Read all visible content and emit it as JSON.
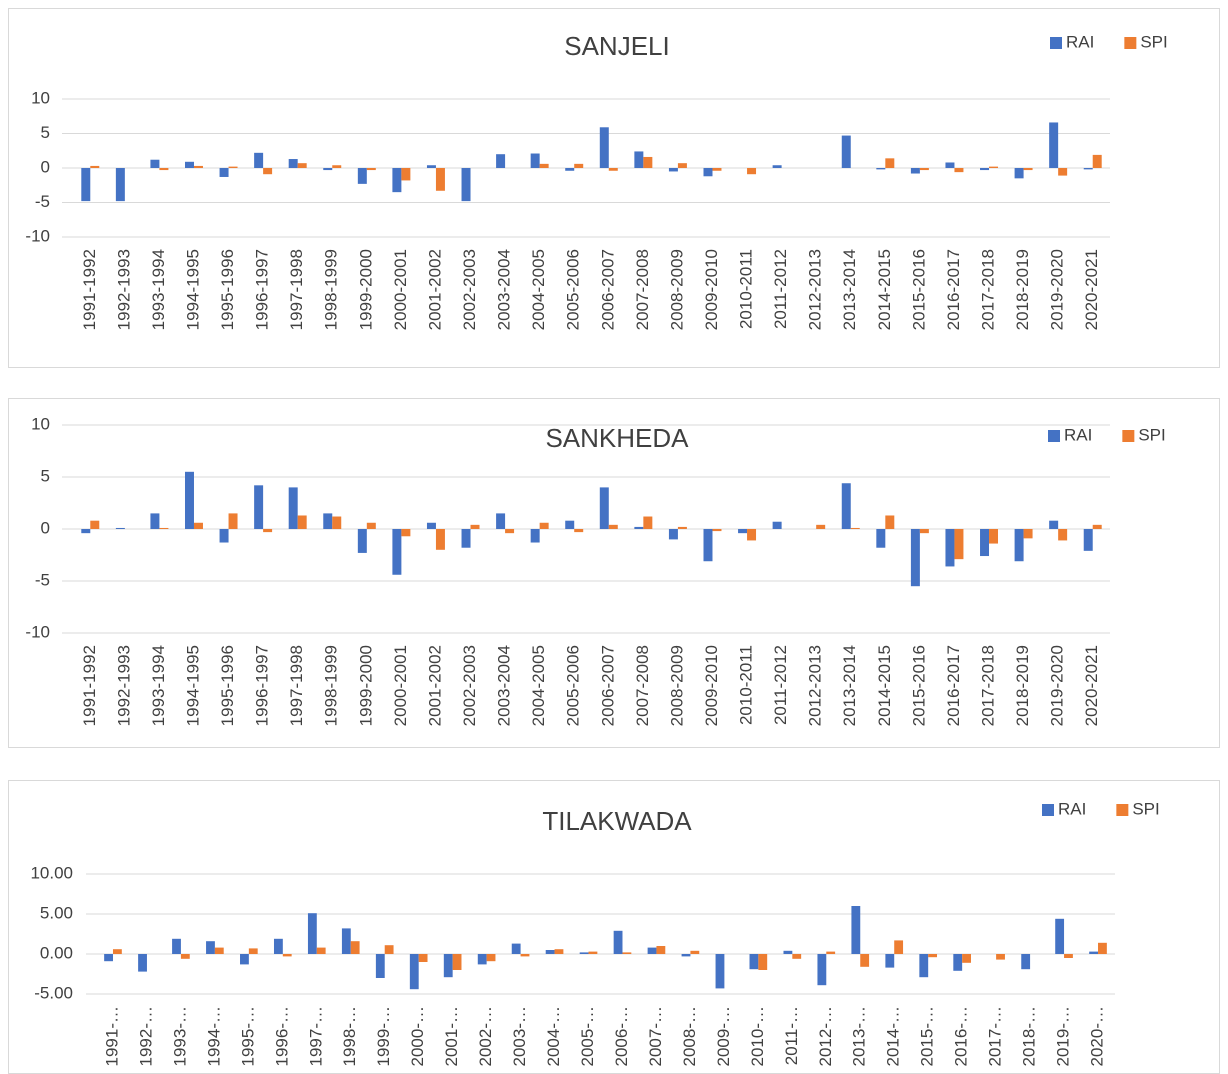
{
  "chart_data": [
    {
      "type": "bar",
      "title": "SANJELI",
      "categories": [
        "1991-1992",
        "1992-1993",
        "1993-1994",
        "1994-1995",
        "1995-1996",
        "1996-1997",
        "1997-1998",
        "1998-1999",
        "1999-2000",
        "2000-2001",
        "2001-2002",
        "2002-2003",
        "2003-2004",
        "2004-2005",
        "2005-2006",
        "2006-2007",
        "2007-2008",
        "2008-2009",
        "2009-2010",
        "2010-2011",
        "2011-2012",
        "2012-2013",
        "2013-2014",
        "2014-2015",
        "2015-2016",
        "2016-2017",
        "2017-2018",
        "2018-2019",
        "2019-2020",
        "2020-2021"
      ],
      "series": [
        {
          "name": "RAI",
          "color": "#4472c4",
          "values": [
            -4.8,
            -4.8,
            1.2,
            0.9,
            -1.3,
            2.2,
            1.3,
            -0.3,
            -2.3,
            -3.5,
            0.4,
            -4.8,
            2.0,
            2.1,
            -0.4,
            5.9,
            2.4,
            -0.5,
            -1.2,
            0,
            0.4,
            0,
            4.7,
            -0.2,
            -0.8,
            0.8,
            -0.3,
            -1.5,
            6.6,
            -0.2
          ]
        },
        {
          "name": "SPI",
          "color": "#ed7d31",
          "values": [
            0.3,
            0,
            -0.3,
            0.3,
            0.2,
            -0.9,
            0.7,
            0.4,
            -0.3,
            -1.8,
            -3.3,
            0,
            0,
            0.6,
            0.6,
            -0.4,
            1.6,
            0.7,
            -0.4,
            -0.9,
            0,
            0,
            0,
            1.4,
            -0.3,
            -0.6,
            0.2,
            -0.3,
            -1.1,
            1.9
          ]
        }
      ],
      "ylim": [
        -10,
        10
      ],
      "yticks": [
        -10,
        -5,
        0,
        5,
        10
      ],
      "grid": true,
      "legend": "top-right"
    },
    {
      "type": "bar",
      "title": "SANKHEDA",
      "categories": [
        "1991-1992",
        "1992-1993",
        "1993-1994",
        "1994-1995",
        "1995-1996",
        "1996-1997",
        "1997-1998",
        "1998-1999",
        "1999-2000",
        "2000-2001",
        "2001-2002",
        "2002-2003",
        "2003-2004",
        "2004-2005",
        "2005-2006",
        "2006-2007",
        "2007-2008",
        "2008-2009",
        "2009-2010",
        "2010-2011",
        "2011-2012",
        "2012-2013",
        "2013-2014",
        "2014-2015",
        "2015-2016",
        "2016-2017",
        "2017-2018",
        "2018-2019",
        "2019-2020",
        "2020-2021"
      ],
      "series": [
        {
          "name": "RAI",
          "color": "#4472c4",
          "values": [
            -0.4,
            0.1,
            1.5,
            5.5,
            -1.3,
            4.2,
            4.0,
            1.5,
            -2.3,
            -4.4,
            0.6,
            -1.8,
            1.5,
            -1.3,
            0.8,
            4.0,
            0.2,
            -1.0,
            -3.1,
            -0.4,
            0.7,
            0,
            4.4,
            -1.8,
            -5.5,
            -3.6,
            -2.6,
            -3.1,
            0.8,
            -2.1
          ]
        },
        {
          "name": "SPI",
          "color": "#ed7d31",
          "values": [
            0.8,
            0,
            0.1,
            0.6,
            1.5,
            -0.3,
            1.3,
            1.2,
            0.6,
            -0.7,
            -2.0,
            0.4,
            -0.4,
            0.6,
            -0.3,
            0.4,
            1.2,
            0.2,
            -0.2,
            -1.1,
            0,
            0.4,
            0.1,
            1.3,
            -0.4,
            -2.9,
            -1.4,
            -0.9,
            -1.1,
            0.4
          ]
        }
      ],
      "ylim": [
        -10,
        10
      ],
      "yticks": [
        -10,
        -5,
        0,
        5,
        10
      ],
      "grid": true,
      "legend": "top-right"
    },
    {
      "type": "bar",
      "title": "TILAKWADA",
      "categories": [
        "1991-…",
        "1992-…",
        "1993-…",
        "1994-…",
        "1995-…",
        "1996-…",
        "1997-…",
        "1998-…",
        "1999-…",
        "2000-…",
        "2001-…",
        "2002-…",
        "2003-…",
        "2004-…",
        "2005-…",
        "2006-…",
        "2007-…",
        "2008-…",
        "2009-…",
        "2010-…",
        "2011-…",
        "2012-…",
        "2013-…",
        "2014-…",
        "2015-…",
        "2016-…",
        "2017-…",
        "2018-…",
        "2019-…",
        "2020-…"
      ],
      "series": [
        {
          "name": "RAI",
          "color": "#4472c4",
          "values": [
            -0.9,
            -2.2,
            1.9,
            1.6,
            -1.3,
            1.9,
            5.1,
            3.2,
            -3.0,
            -4.4,
            -2.9,
            -1.3,
            1.3,
            0.5,
            0.2,
            2.9,
            0.8,
            -0.3,
            -4.3,
            -1.9,
            0.4,
            -3.9,
            6.0,
            -1.7,
            -2.9,
            -2.1,
            0,
            -1.9,
            4.4,
            0.3
          ]
        },
        {
          "name": "SPI",
          "color": "#ed7d31",
          "values": [
            0.6,
            0,
            -0.6,
            0.8,
            0.7,
            -0.3,
            0.8,
            1.6,
            1.1,
            -1.0,
            -2.0,
            -0.9,
            -0.3,
            0.6,
            0.3,
            0.2,
            1.0,
            0.4,
            0,
            -2.0,
            -0.6,
            0.3,
            -1.6,
            1.7,
            -0.4,
            -1.1,
            -0.7,
            0,
            -0.5,
            1.4
          ]
        }
      ],
      "ylim": [
        -5,
        10
      ],
      "yticks": [
        {
          "value": -5,
          "label": "-5.00"
        },
        {
          "value": 0,
          "label": "0.00"
        },
        {
          "value": 5,
          "label": "5.00"
        },
        {
          "value": 10,
          "label": "10.00"
        }
      ],
      "grid": true,
      "legend": "top-right"
    }
  ]
}
